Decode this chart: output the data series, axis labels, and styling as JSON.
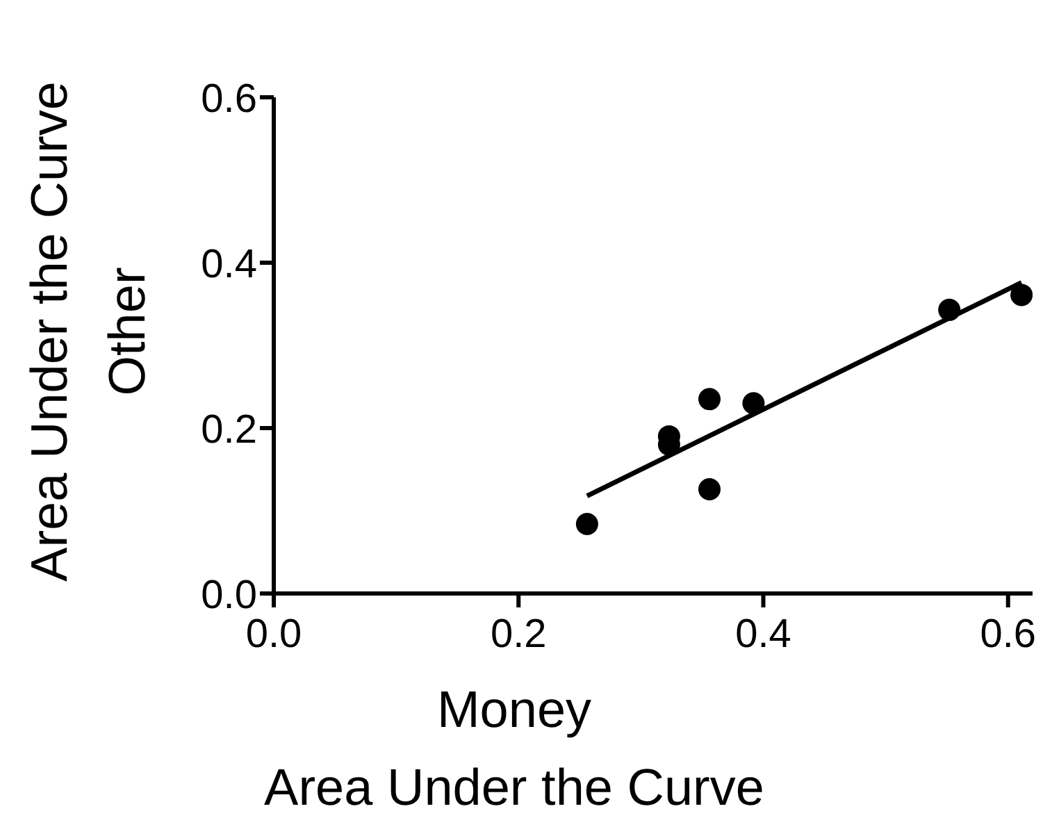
{
  "chart_data": {
    "type": "scatter",
    "xlabel": "Money\nArea Under the Curve",
    "ylabel": "Area Under the Curve\nOther",
    "xlim": [
      0,
      0.62
    ],
    "ylim": [
      0,
      0.6
    ],
    "xticks": [
      {
        "value": 0,
        "label": "0.0"
      },
      {
        "value": 0.2,
        "label": "0.2"
      },
      {
        "value": 0.4,
        "label": "0.4"
      },
      {
        "value": 0.6,
        "label": "0.6"
      }
    ],
    "yticks": [
      {
        "value": 0,
        "label": "0.0"
      },
      {
        "value": 0.2,
        "label": "0.2"
      },
      {
        "value": 0.4,
        "label": "0.4"
      },
      {
        "value": 0.6,
        "label": "0.6"
      }
    ],
    "grid": false,
    "legend": false,
    "series": [
      {
        "color": "#000000",
        "marker": "circle",
        "x": [
          0.256,
          0.323,
          0.323,
          0.356,
          0.356,
          0.392,
          0.552,
          0.611
        ],
        "values": [
          0.084,
          0.19,
          0.18,
          0.235,
          0.126,
          0.23,
          0.343,
          0.361
        ]
      },
      {
        "type": "line",
        "color": "#000000",
        "marker": "none",
        "line_style": "solid",
        "x": [
          0.256,
          0.611
        ],
        "values": [
          0.118,
          0.376
        ]
      }
    ]
  }
}
